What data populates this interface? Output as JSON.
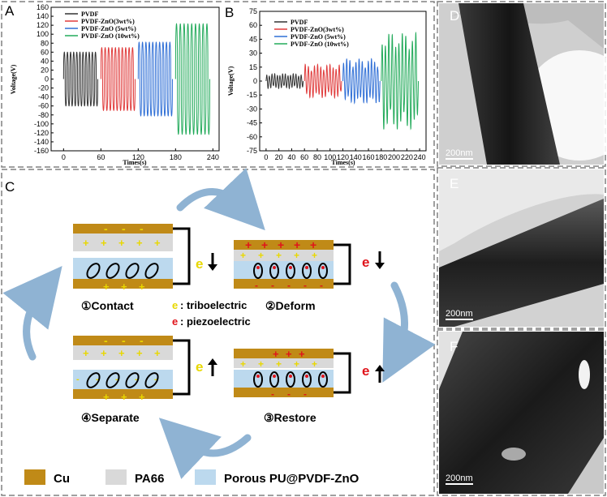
{
  "colors": {
    "cu": "#c08a17",
    "pa66": "#d9d9d9",
    "pu": "#bcd9ee",
    "tribo": "#e8d800",
    "piezo": "#e0141b",
    "arrow": "#8fb3d3",
    "border": "#808080",
    "tem_bg": "#d4d4d4",
    "tem_fiber": "#2a2a2a"
  },
  "panel_labels": {
    "a": "A",
    "b": "B",
    "c": "C",
    "d": "D",
    "e": "E",
    "f": "F"
  },
  "charts": [
    {
      "id": "A",
      "ylabel": "Voltage(V)",
      "xlabel": "Times(s)",
      "yticks": [
        "160",
        "140",
        "120",
        "100",
        "80",
        "60",
        "40",
        "20",
        "0",
        "-20",
        "-40",
        "-60",
        "-80",
        "-100",
        "-120",
        "-140",
        "-160"
      ],
      "xticks": [
        "0",
        "60",
        "120",
        "180",
        "240"
      ],
      "legend": [
        "PVDF",
        "PVDF-ZnO(3wt%)",
        "PVDF-ZnO (5wt%)",
        "PVDF-ZnO (10wt%)"
      ]
    },
    {
      "id": "B",
      "ylabel": "Voltage(V)",
      "xlabel": "Times(s)",
      "yticks": [
        "75",
        "60",
        "45",
        "30",
        "15",
        "0",
        "-15",
        "-30",
        "-45",
        "-60",
        "-75"
      ],
      "xticks": [
        "0",
        "20",
        "40",
        "60",
        "80",
        "100",
        "120",
        "140",
        "160",
        "180",
        "200",
        "220",
        "240"
      ],
      "legend": [
        "PVDF",
        "PVDF-ZnO(3wt%)",
        "PVDF-ZnO (5wt%)",
        "PVDF-ZnO (10wt%)"
      ]
    }
  ],
  "chart_data": [
    {
      "type": "line",
      "xlabel": "Times(s)",
      "ylabel": "Voltage(V)",
      "xlim": [
        -20,
        250
      ],
      "ylim": [
        -160,
        160
      ],
      "series": [
        {
          "name": "PVDF",
          "color": "#333333",
          "x_range": [
            0,
            55
          ],
          "amplitude": 60,
          "cycles": 11
        },
        {
          "name": "PVDF-ZnO(3wt%)",
          "color": "#e03a3a",
          "x_range": [
            60,
            115
          ],
          "amplitude": 70,
          "cycles": 10
        },
        {
          "name": "PVDF-ZnO (5wt%)",
          "color": "#2f6fd6",
          "x_range": [
            120,
            175
          ],
          "amplitude": 82,
          "cycles": 10
        },
        {
          "name": "PVDF-ZnO (10wt%)",
          "color": "#22aa5a",
          "x_range": [
            180,
            235
          ],
          "amplitude": 123,
          "cycles": 9
        }
      ]
    },
    {
      "type": "line",
      "xlabel": "Times(s)",
      "ylabel": "Voltage(V)",
      "xlim": [
        -10,
        250
      ],
      "ylim": [
        -75,
        75
      ],
      "series": [
        {
          "name": "PVDF",
          "color": "#333333",
          "x_range": [
            0,
            58
          ],
          "amplitude": 8,
          "cycles": 14
        },
        {
          "name": "PVDF-ZnO(3wt%)",
          "color": "#e03a3a",
          "x_range": [
            60,
            118
          ],
          "amplitude": 18,
          "cycles": 12
        },
        {
          "name": "PVDF-ZnO (5wt%)",
          "color": "#2f6fd6",
          "x_range": [
            120,
            178
          ],
          "amplitude": 24,
          "cycles": 12
        },
        {
          "name": "PVDF-ZnO (10wt%)",
          "color": "#22aa5a",
          "x_range": [
            180,
            238
          ],
          "amplitude": 52,
          "cycles": 11
        }
      ]
    }
  ],
  "stages": {
    "contact": "①Contact",
    "deform": "②Deform",
    "separate": "④Separate",
    "restore": "③Restore"
  },
  "notes": {
    "tribo_letter": "e",
    "tribo_text": ":  triboelectric",
    "piezo_letter": "e",
    "piezo_text": ":  piezoelectric"
  },
  "symbols": {
    "minus": "-",
    "plus": "+",
    "electron": "e"
  },
  "key": {
    "cu": "Cu",
    "pa66": "PA66",
    "pu": "Porous PU@PVDF-ZnO"
  },
  "tem": [
    {
      "id": "D",
      "scale": "200nm"
    },
    {
      "id": "E",
      "scale": "200nm"
    },
    {
      "id": "F",
      "scale": "200nm"
    }
  ]
}
